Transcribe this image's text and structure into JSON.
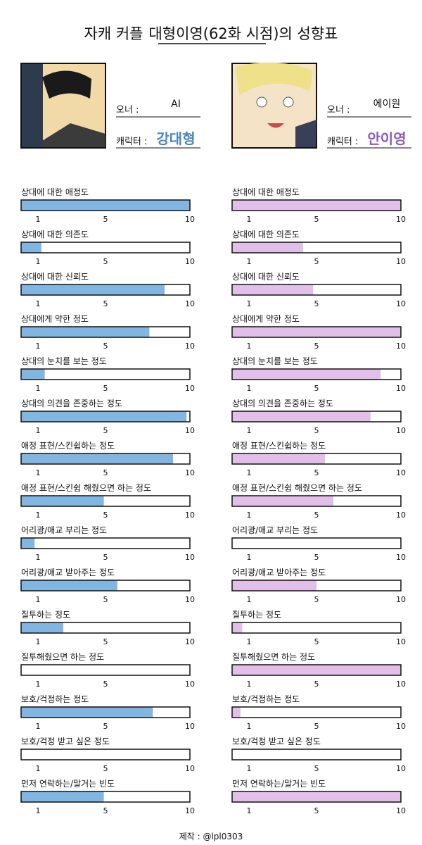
{
  "header": {
    "title_prefix": "자캐 커플",
    "title_highlight": "대형이영(62화 시점)",
    "title_suffix": "의 성향표"
  },
  "profiles": [
    {
      "owner_label": "오너 :",
      "owner": "AI",
      "character_label": "캐릭터 :",
      "character": "강대형",
      "color": "#82b6e0",
      "name_color": "#4a86c0",
      "values": [
        10,
        1.2,
        8.5,
        7.6,
        1.4,
        9.8,
        9,
        4.9,
        0.8,
        5.7,
        2.5,
        0,
        7.8,
        0,
        4.9
      ]
    },
    {
      "owner_label": "오너 :",
      "owner": "에이원",
      "character_label": "캐릭터 :",
      "character": "안이영",
      "color": "#e2bfe8",
      "name_color": "#8c5bb8",
      "values": [
        10,
        4.2,
        4.8,
        10,
        8.8,
        8.2,
        5.5,
        6,
        0,
        5,
        0.6,
        10,
        0.5,
        0,
        10
      ]
    }
  ],
  "items": [
    "상대에 대한 애정도",
    "상대에 대한 의존도",
    "상대에 대한 신뢰도",
    "상대에게 약한 정도",
    "상대의 눈치를 보는 정도",
    "상대의 의견을 존중하는 정도",
    "애정 표현/스킨쉽하는 정도",
    "애정 표현/스킨쉽 해줬으면 하는 정도",
    "어리광/애교 부리는 정도",
    "어리광/애교 받아주는 정도",
    "질투하는 정도",
    "질투해줬으면 하는 정도",
    "보호/걱정하는 정도",
    "보호/걱정 받고 싶은 정도",
    "먼저 연락하는/말거는 빈도"
  ],
  "scale": {
    "xlim": [
      0,
      10
    ],
    "ticks": [
      1,
      5,
      10
    ]
  },
  "footer": "제작 : @lpl0303"
}
